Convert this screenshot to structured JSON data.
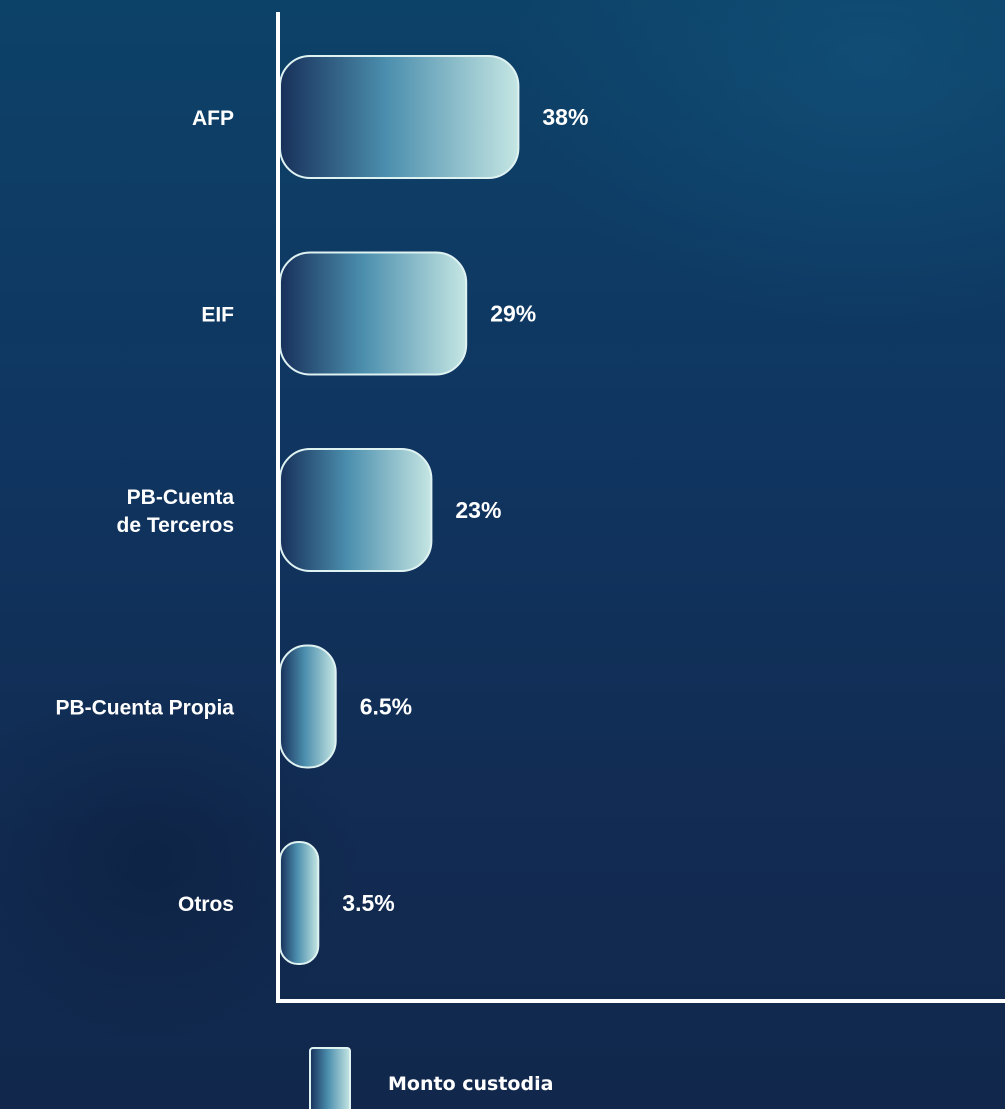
{
  "chart_data": {
    "type": "bar",
    "orientation": "horizontal",
    "categories": [
      "AFP",
      "EIF",
      "PB-Cuenta de Terceros",
      "PB-Cuenta Propia",
      "Otros"
    ],
    "category_lines": [
      [
        "AFP"
      ],
      [
        "EIF"
      ],
      [
        "PB-Cuenta",
        "de Terceros"
      ],
      [
        "PB-Cuenta Propia"
      ],
      [
        "Otros"
      ]
    ],
    "series": [
      {
        "name": "Monto custodia",
        "values": [
          38,
          29,
          23,
          6.5,
          3.5
        ],
        "labels": [
          "38%",
          "29%",
          "23%",
          "6.5%",
          "3.5%"
        ]
      }
    ],
    "title": "",
    "xlabel": "",
    "ylabel": "",
    "grid": false,
    "legend": "bottom-center",
    "colors": {
      "bar_start": "#17305a",
      "bar_mid": "#4c8fae",
      "bar_end": "#c5e6e3",
      "bar_border": "#dff2f2",
      "axis": "#ffffff",
      "text": "#ffffff"
    }
  }
}
